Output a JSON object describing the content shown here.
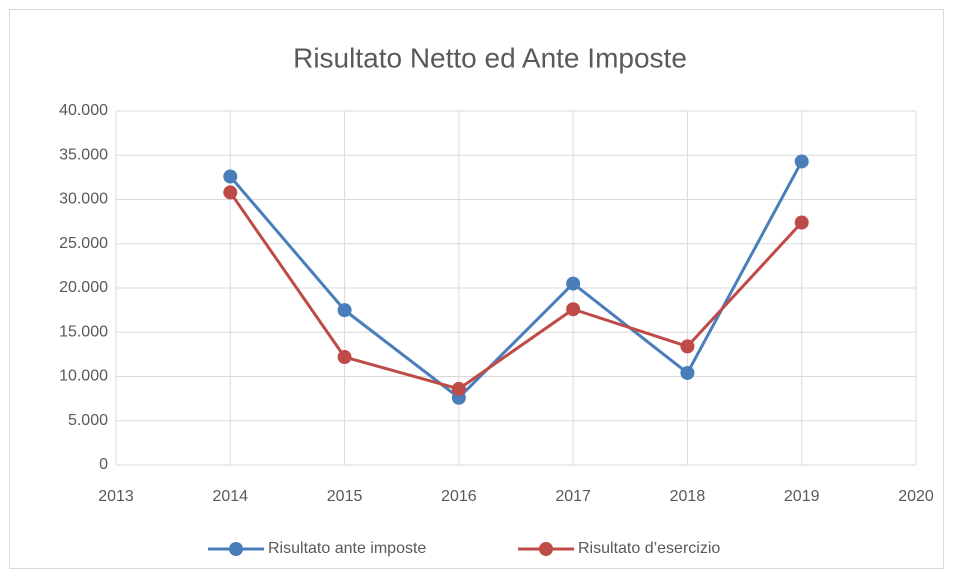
{
  "chart_data": {
    "type": "line",
    "title": "Risultato Netto ed Ante Imposte",
    "x": [
      2014,
      2015,
      2016,
      2017,
      2018,
      2019
    ],
    "series": [
      {
        "name": "Risultato ante imposte",
        "color": "#4a7ebb",
        "values": [
          32600,
          17500,
          7600,
          20500,
          10400,
          34300
        ]
      },
      {
        "name": "Risultato d’esercizio",
        "color": "#be4b48",
        "values": [
          30800,
          12200,
          8600,
          17600,
          13400,
          27400
        ]
      }
    ],
    "xlim": [
      2013,
      2020
    ],
    "xticks": [
      2013,
      2014,
      2015,
      2016,
      2017,
      2018,
      2019,
      2020
    ],
    "ylim": [
      0,
      40000
    ],
    "yticks": [
      0,
      {
        "value": 5000,
        "label": "5.000"
      },
      {
        "value": 10000,
        "label": "10.000"
      },
      {
        "value": 15000,
        "label": "15.000"
      },
      {
        "value": 20000,
        "label": "20.000"
      },
      {
        "value": 25000,
        "label": "25.000"
      },
      {
        "value": 30000,
        "label": "30.000"
      },
      {
        "value": 35000,
        "label": "35.000"
      },
      {
        "value": 40000,
        "label": "40.000"
      }
    ],
    "grid": true,
    "legend": "bottom"
  }
}
